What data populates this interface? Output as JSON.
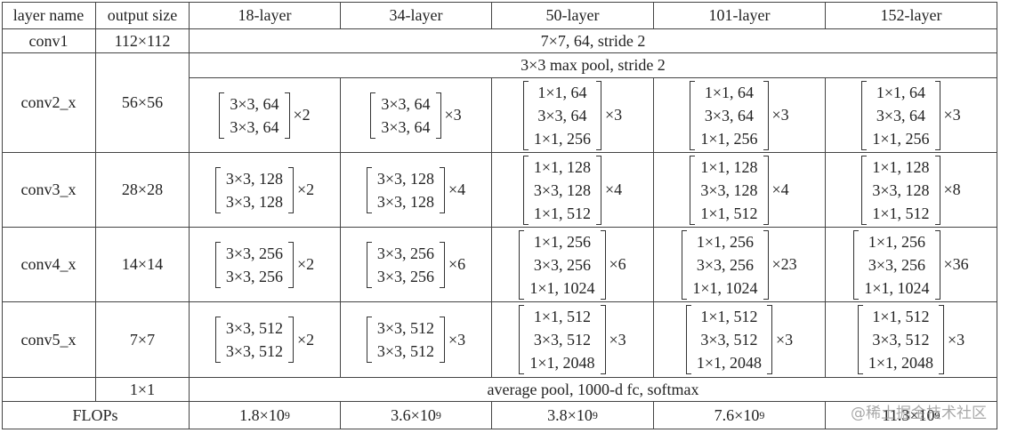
{
  "table": {
    "header": [
      "layer name",
      "output size",
      "18-layer",
      "34-layer",
      "50-layer",
      "101-layer",
      "152-layer"
    ],
    "rows": [
      {
        "name": "conv1",
        "output": "112×112",
        "all": "7×7, 64, stride 2"
      },
      {
        "name": "conv2_x",
        "output": "56×56",
        "all": "3×3 max pool, stride 2",
        "blocks": [
          {
            "lines": [
              "3×3, 64",
              "3×3, 64"
            ],
            "repeat": "×2"
          },
          {
            "lines": [
              "3×3, 64",
              "3×3, 64"
            ],
            "repeat": "×3"
          },
          {
            "lines": [
              "1×1, 64",
              "3×3, 64",
              "1×1, 256"
            ],
            "repeat": "×3"
          },
          {
            "lines": [
              "1×1, 64",
              "3×3, 64",
              "1×1, 256"
            ],
            "repeat": "×3"
          },
          {
            "lines": [
              "1×1, 64",
              "3×3, 64",
              "1×1, 256"
            ],
            "repeat": "×3"
          }
        ]
      },
      {
        "name": "conv3_x",
        "output": "28×28",
        "blocks": [
          {
            "lines": [
              "3×3, 128",
              "3×3, 128"
            ],
            "repeat": "×2"
          },
          {
            "lines": [
              "3×3, 128",
              "3×3, 128"
            ],
            "repeat": "×4"
          },
          {
            "lines": [
              "1×1, 128",
              "3×3, 128",
              "1×1, 512"
            ],
            "repeat": "×4"
          },
          {
            "lines": [
              "1×1, 128",
              "3×3, 128",
              "1×1, 512"
            ],
            "repeat": "×4"
          },
          {
            "lines": [
              "1×1, 128",
              "3×3, 128",
              "1×1, 512"
            ],
            "repeat": "×8"
          }
        ]
      },
      {
        "name": "conv4_x",
        "output": "14×14",
        "blocks": [
          {
            "lines": [
              "3×3, 256",
              "3×3, 256"
            ],
            "repeat": "×2"
          },
          {
            "lines": [
              "3×3, 256",
              "3×3, 256"
            ],
            "repeat": "×6"
          },
          {
            "lines": [
              "1×1, 256",
              "3×3, 256",
              "1×1, 1024"
            ],
            "repeat": "×6"
          },
          {
            "lines": [
              "1×1, 256",
              "3×3, 256",
              "1×1, 1024"
            ],
            "repeat": "×23"
          },
          {
            "lines": [
              "1×1, 256",
              "3×3, 256",
              "1×1, 1024"
            ],
            "repeat": "×36"
          }
        ]
      },
      {
        "name": "conv5_x",
        "output": "7×7",
        "blocks": [
          {
            "lines": [
              "3×3, 512",
              "3×3, 512"
            ],
            "repeat": "×2"
          },
          {
            "lines": [
              "3×3, 512",
              "3×3, 512"
            ],
            "repeat": "×3"
          },
          {
            "lines": [
              "1×1, 512",
              "3×3, 512",
              "1×1, 2048"
            ],
            "repeat": "×3"
          },
          {
            "lines": [
              "1×1, 512",
              "3×3, 512",
              "1×1, 2048"
            ],
            "repeat": "×3"
          },
          {
            "lines": [
              "1×1, 512",
              "3×3, 512",
              "1×1, 2048"
            ],
            "repeat": "×3"
          }
        ]
      },
      {
        "output": "1×1",
        "all": "average pool, 1000-d fc, softmax"
      },
      {
        "name": "FLOPs",
        "flops": [
          {
            "mantissa": "1.8×10",
            "exponent": "9"
          },
          {
            "mantissa": "3.6×10",
            "exponent": "9"
          },
          {
            "mantissa": "3.8×10",
            "exponent": "9"
          },
          {
            "mantissa": "7.6×10",
            "exponent": "9"
          },
          {
            "mantissa": "11.3×10",
            "exponent": "9"
          }
        ]
      }
    ],
    "watermark": "@稀土掘金技术社区"
  }
}
